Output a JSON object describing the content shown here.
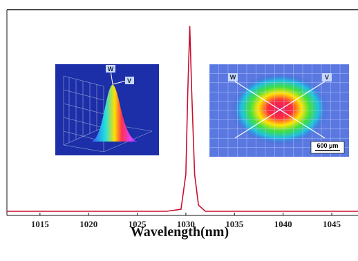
{
  "chart_data": {
    "type": "line",
    "x_label": "Wavelength(nm)",
    "x": [
      1011.6,
      1020,
      1028,
      1029.5,
      1030.0,
      1030.2,
      1030.4,
      1030.6,
      1030.9,
      1031.3,
      1032,
      1040,
      1047.7
    ],
    "series": [
      {
        "color": "#c8102e",
        "values": [
          0.02,
          0.02,
          0.02,
          0.03,
          0.2,
          0.6,
          0.92,
          0.6,
          0.2,
          0.05,
          0.02,
          0.02,
          0.02
        ]
      }
    ],
    "xlim": [
      1011.6,
      1047.7
    ],
    "xticks": [
      1015,
      1020,
      1025,
      1030,
      1035,
      1040,
      1045
    ],
    "ylim": [
      0,
      1
    ],
    "annotations": [
      "W",
      "V",
      "W",
      "V",
      "600 μm"
    ]
  }
}
